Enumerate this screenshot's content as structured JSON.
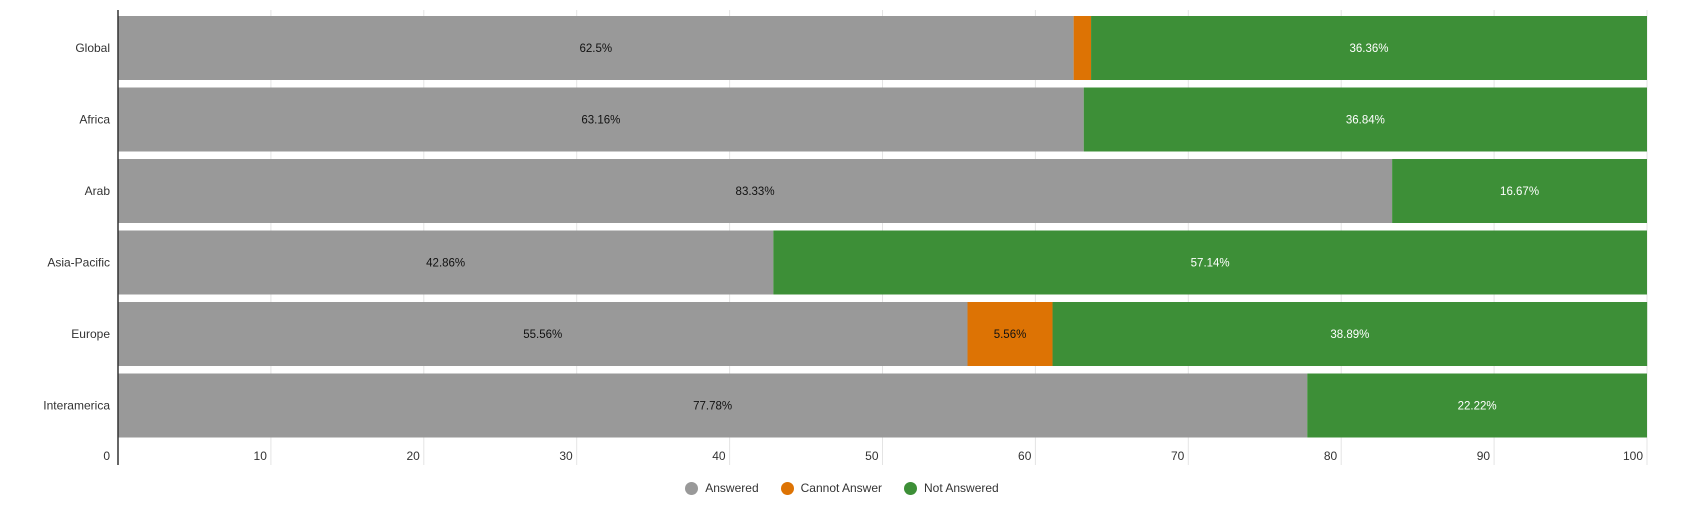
{
  "chart_data": {
    "type": "bar",
    "orientation": "horizontal",
    "stacked": true,
    "categories": [
      "Global",
      "Africa",
      "Arab",
      "Asia-Pacific",
      "Europe",
      "Interamerica"
    ],
    "series": [
      {
        "name": "Answered",
        "color": "#999999",
        "label_color": "#111111",
        "values": [
          62.5,
          63.16,
          83.33,
          42.86,
          55.56,
          77.78
        ],
        "labels": [
          "62.5%",
          "63.16%",
          "83.33%",
          "42.86%",
          "55.56%",
          "77.78%"
        ]
      },
      {
        "name": "Cannot Answer",
        "color": "#dd7304",
        "label_color": "#111111",
        "values": [
          1.14,
          0,
          0,
          0,
          5.56,
          0
        ],
        "labels": [
          "",
          "",
          "",
          "",
          "5.56%",
          ""
        ]
      },
      {
        "name": "Not Answered",
        "color": "#3d8f37",
        "label_color": "#ffffff",
        "values": [
          36.36,
          36.84,
          16.67,
          57.14,
          38.89,
          22.22
        ],
        "labels": [
          "36.36%",
          "36.84%",
          "16.67%",
          "57.14%",
          "38.89%",
          "22.22%"
        ]
      }
    ],
    "xlim": [
      0,
      100
    ],
    "xticks": [
      "0",
      "10",
      "20",
      "30",
      "40",
      "50",
      "60",
      "70",
      "80",
      "90",
      "100"
    ],
    "xlabel": "",
    "ylabel": "",
    "grid": true,
    "legend_position": "bottom"
  }
}
